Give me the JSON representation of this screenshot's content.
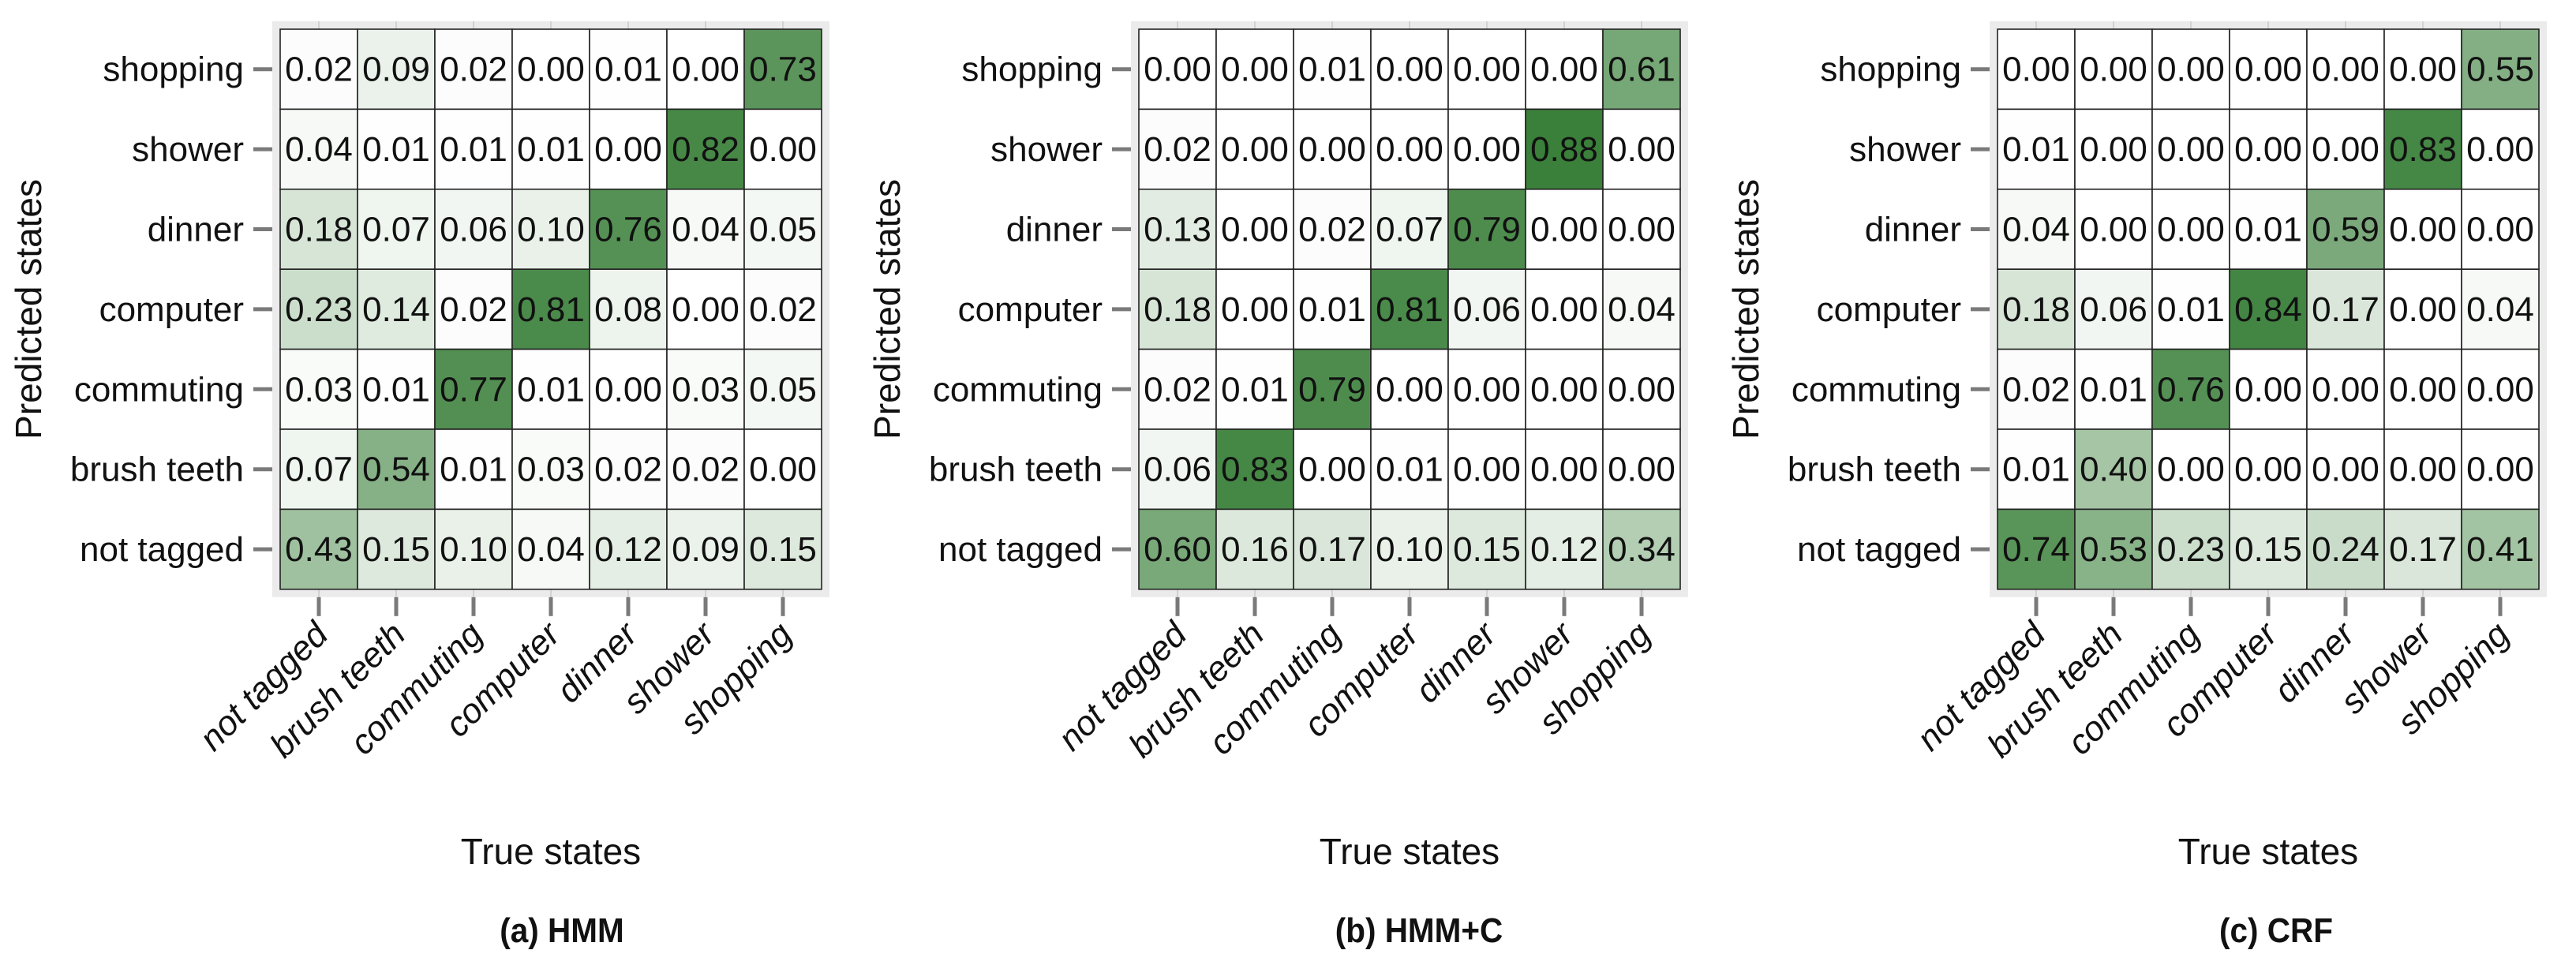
{
  "colors": {
    "max": "#1f6e1f",
    "min": "#ffffff",
    "panel_bg": "#ebebeb",
    "tick": "#7a7a7a",
    "text": "#111111"
  },
  "chart_data": [
    {
      "type": "heatmap",
      "caption": "(a) HMM",
      "xlabel": "True states",
      "ylabel": "Predicted states",
      "x_categories": [
        "not tagged",
        "brush teeth",
        "commuting",
        "computer",
        "dinner",
        "shower",
        "shopping"
      ],
      "y_categories_top_to_bottom": [
        "shopping",
        "shower",
        "dinner",
        "computer",
        "commuting",
        "brush teeth",
        "not tagged"
      ],
      "values": [
        [
          "0.02",
          "0.09",
          "0.02",
          "0.00",
          "0.01",
          "0.00",
          "0.73"
        ],
        [
          "0.04",
          "0.01",
          "0.01",
          "0.01",
          "0.00",
          "0.82",
          "0.00"
        ],
        [
          "0.18",
          "0.07",
          "0.06",
          "0.10",
          "0.76",
          "0.04",
          "0.05"
        ],
        [
          "0.23",
          "0.14",
          "0.02",
          "0.81",
          "0.08",
          "0.00",
          "0.02"
        ],
        [
          "0.03",
          "0.01",
          "0.77",
          "0.01",
          "0.00",
          "0.03",
          "0.05"
        ],
        [
          "0.07",
          "0.54",
          "0.01",
          "0.03",
          "0.02",
          "0.02",
          "0.00"
        ],
        [
          "0.43",
          "0.15",
          "0.10",
          "0.04",
          "0.12",
          "0.09",
          "0.15"
        ]
      ]
    },
    {
      "type": "heatmap",
      "caption": "(b) HMM+C",
      "xlabel": "True states",
      "ylabel": "Predicted states",
      "x_categories": [
        "not tagged",
        "brush teeth",
        "commuting",
        "computer",
        "dinner",
        "shower",
        "shopping"
      ],
      "y_categories_top_to_bottom": [
        "shopping",
        "shower",
        "dinner",
        "computer",
        "commuting",
        "brush teeth",
        "not tagged"
      ],
      "values": [
        [
          "0.00",
          "0.00",
          "0.01",
          "0.00",
          "0.00",
          "0.00",
          "0.61"
        ],
        [
          "0.02",
          "0.00",
          "0.00",
          "0.00",
          "0.00",
          "0.88",
          "0.00"
        ],
        [
          "0.13",
          "0.00",
          "0.02",
          "0.07",
          "0.79",
          "0.00",
          "0.00"
        ],
        [
          "0.18",
          "0.00",
          "0.01",
          "0.81",
          "0.06",
          "0.00",
          "0.04"
        ],
        [
          "0.02",
          "0.01",
          "0.79",
          "0.00",
          "0.00",
          "0.00",
          "0.00"
        ],
        [
          "0.06",
          "0.83",
          "0.00",
          "0.01",
          "0.00",
          "0.00",
          "0.00"
        ],
        [
          "0.60",
          "0.16",
          "0.17",
          "0.10",
          "0.15",
          "0.12",
          "0.34"
        ]
      ]
    },
    {
      "type": "heatmap",
      "caption": "(c) CRF",
      "xlabel": "True states",
      "ylabel": "Predicted states",
      "x_categories": [
        "not tagged",
        "brush teeth",
        "commuting",
        "computer",
        "dinner",
        "shower",
        "shopping"
      ],
      "y_categories_top_to_bottom": [
        "shopping",
        "shower",
        "dinner",
        "computer",
        "commuting",
        "brush teeth",
        "not tagged"
      ],
      "values": [
        [
          "0.00",
          "0.00",
          "0.00",
          "0.00",
          "0.00",
          "0.00",
          "0.55"
        ],
        [
          "0.01",
          "0.00",
          "0.00",
          "0.00",
          "0.00",
          "0.83",
          "0.00"
        ],
        [
          "0.04",
          "0.00",
          "0.00",
          "0.01",
          "0.59",
          "0.00",
          "0.00"
        ],
        [
          "0.18",
          "0.06",
          "0.01",
          "0.84",
          "0.17",
          "0.00",
          "0.04"
        ],
        [
          "0.02",
          "0.01",
          "0.76",
          "0.00",
          "0.00",
          "0.00",
          "0.00"
        ],
        [
          "0.01",
          "0.40",
          "0.00",
          "0.00",
          "0.00",
          "0.00",
          "0.00"
        ],
        [
          "0.74",
          "0.53",
          "0.23",
          "0.15",
          "0.24",
          "0.17",
          "0.41"
        ]
      ]
    }
  ]
}
